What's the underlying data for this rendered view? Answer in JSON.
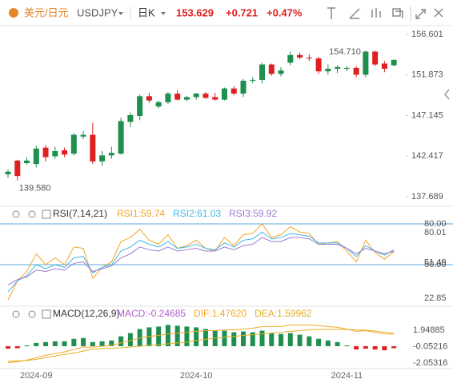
{
  "header": {
    "pair": "美元/日元",
    "symbol": "USDJPY",
    "period": "日K",
    "price": "153.629",
    "change": "+0.721",
    "change_pct": "+0.47%"
  },
  "chart_data": [
    {
      "type": "candlestick",
      "categories": [
        null,
        null,
        null,
        "2024-09",
        null,
        null,
        null,
        null,
        null,
        null,
        null,
        null,
        null,
        null,
        null,
        null,
        null,
        null,
        null,
        null,
        "2024-10",
        null,
        null,
        null,
        null,
        null,
        null,
        null,
        null,
        null,
        null,
        null,
        null,
        null,
        null,
        null,
        "2024-11",
        null,
        null,
        null,
        null,
        null
      ],
      "open": [
        140.3,
        141.9,
        141.6,
        141.5,
        143.4,
        142.4,
        143.1,
        142.7,
        144.7,
        144.9,
        141.8,
        142.5,
        142.7,
        146.4,
        147.1,
        149.4,
        148.2,
        148.7,
        149.7,
        149.0,
        149.3,
        149.7,
        149.3,
        149.0,
        150.3,
        149.7,
        151.2,
        151.3,
        153.1,
        152.0,
        153.3,
        154.2,
        153.9,
        153.8,
        152.3,
        152.6,
        152.6,
        152.7,
        151.9,
        154.6,
        153.2,
        153.0
      ],
      "high": [
        140.9,
        142.0,
        142.3,
        143.6,
        143.7,
        143.5,
        143.4,
        145.1,
        145.3,
        146.3,
        143.0,
        143.5,
        146.9,
        147.5,
        149.6,
        149.8,
        148.9,
        149.9,
        150.1,
        149.4,
        149.8,
        149.9,
        149.8,
        150.4,
        150.6,
        151.4,
        151.6,
        153.3,
        153.2,
        152.8,
        154.6,
        154.5,
        154.3,
        154.0,
        153.1,
        153.0,
        152.9,
        152.9,
        154.71,
        154.7,
        153.5,
        153.7
      ],
      "low": [
        139.9,
        139.58,
        141.4,
        141.1,
        141.8,
        142.1,
        142.3,
        142.5,
        144.4,
        141.5,
        141.3,
        142.1,
        142.6,
        145.8,
        146.6,
        148.6,
        148.0,
        148.5,
        148.9,
        148.8,
        149.0,
        149.1,
        148.9,
        148.9,
        149.5,
        149.3,
        150.9,
        150.9,
        151.8,
        151.7,
        153.0,
        153.7,
        153.5,
        152.0,
        151.9,
        152.1,
        152.3,
        151.6,
        151.6,
        152.9,
        152.2,
        152.9
      ],
      "close": [
        140.6,
        140.1,
        141.9,
        143.3,
        142.3,
        143.0,
        142.6,
        144.9,
        144.9,
        141.8,
        142.5,
        142.8,
        146.5,
        147.2,
        149.4,
        148.9,
        148.7,
        149.7,
        149.0,
        149.3,
        149.7,
        149.2,
        149.0,
        150.3,
        149.7,
        151.2,
        151.3,
        153.1,
        152.0,
        152.4,
        154.2,
        153.9,
        153.8,
        152.3,
        152.6,
        152.8,
        152.7,
        151.9,
        154.6,
        153.1,
        152.6,
        153.63
      ],
      "up_color": "#1e8f4e",
      "down_color": "#e02020",
      "high_label": "154.710",
      "low_label": "139.580",
      "ylim": [
        136.85,
        157.35
      ],
      "yticks": [
        {
          "value": 156.601,
          "label": "156.601"
        },
        {
          "value": 151.873,
          "label": "151.873"
        },
        {
          "value": 147.145,
          "label": "147.145"
        },
        {
          "value": 142.417,
          "label": "142.417"
        },
        {
          "value": 137.689,
          "label": "137.689"
        }
      ]
    },
    {
      "type": "line",
      "title": "RSI(7,14,21)",
      "series": [
        {
          "name": "RSI1:59.74",
          "color": "#f5a623",
          "values": [
            24,
            38,
            45,
            58,
            50,
            55,
            50,
            63,
            62,
            40,
            48,
            52,
            67,
            70,
            76,
            68,
            65,
            72,
            62,
            64,
            68,
            62,
            60,
            70,
            64,
            72,
            73,
            80,
            70,
            72,
            78,
            74,
            73,
            65,
            66,
            67,
            60,
            52,
            68,
            59,
            54,
            59.74
          ]
        },
        {
          "name": "RSI2:61.03",
          "color": "#3fb8e8",
          "values": [
            30,
            38,
            42,
            50,
            47,
            50,
            48,
            55,
            56,
            44,
            48,
            50,
            60,
            63,
            68,
            65,
            63,
            67,
            62,
            63,
            65,
            62,
            61,
            66,
            63,
            68,
            69,
            74,
            69,
            70,
            73,
            72,
            71,
            66,
            66,
            66,
            62,
            56,
            64,
            60,
            57,
            61.03
          ]
        },
        {
          "name": "RSI3:59.92",
          "color": "#9b7ad0",
          "values": [
            35,
            39,
            41,
            46,
            45,
            47,
            46,
            51,
            52,
            45,
            47,
            49,
            55,
            58,
            63,
            61,
            60,
            63,
            60,
            61,
            62,
            60,
            60,
            63,
            61,
            64,
            65,
            70,
            67,
            67,
            70,
            70,
            69,
            65,
            65,
            65,
            62,
            58,
            62,
            60,
            58,
            59.92
          ]
        }
      ],
      "level_color": "#5aa7e0",
      "ylim": [
        18.2,
        81.2
      ],
      "yticks": [
        {
          "value": 80,
          "label": "80.00"
        },
        {
          "value": 50,
          "label": "50.00"
        }
      ],
      "axis_labels": [
        {
          "value": 80.01,
          "label": "80.01"
        },
        {
          "value": 51.49,
          "label": "51.49"
        },
        {
          "value": 22.85,
          "label": "22.85"
        }
      ]
    },
    {
      "type": "macd",
      "title": "MACD(12,26,9)",
      "series": [
        {
          "name": "MACD:-0.24685",
          "color": "#b05fd0",
          "up_color": "#1e8f4e",
          "down_color": "#e02020",
          "values": [
            -0.3,
            -0.25,
            0.1,
            0.4,
            0.5,
            0.6,
            0.6,
            0.9,
            1.0,
            0.5,
            0.6,
            0.7,
            1.2,
            1.6,
            2.1,
            2.3,
            2.4,
            2.6,
            2.5,
            2.4,
            2.3,
            2.1,
            1.9,
            1.9,
            1.7,
            1.8,
            1.7,
            1.9,
            1.6,
            1.5,
            1.6,
            1.4,
            1.2,
            0.9,
            0.7,
            0.5,
            0.1,
            -0.4,
            -0.3,
            -0.4,
            -0.5,
            -0.24685
          ]
        },
        {
          "name": "DIF:1.47620",
          "color": "#f5a623",
          "values": [
            -2.0,
            -1.9,
            -1.7,
            -1.4,
            -1.1,
            -0.9,
            -0.7,
            -0.4,
            -0.1,
            -0.1,
            0.0,
            0.1,
            0.4,
            0.7,
            1.0,
            1.2,
            1.3,
            1.5,
            1.6,
            1.7,
            1.8,
            1.9,
            1.9,
            2.0,
            2.0,
            2.1,
            2.2,
            2.4,
            2.4,
            2.4,
            2.6,
            2.6,
            2.6,
            2.5,
            2.4,
            2.3,
            2.1,
            1.8,
            1.9,
            1.7,
            1.5,
            1.4762
          ]
        },
        {
          "name": "DEA:1.59962",
          "color": "#e0b020",
          "values": [
            -1.85,
            -1.8,
            -1.75,
            -1.6,
            -1.4,
            -1.2,
            -1.0,
            -0.85,
            -0.6,
            -0.35,
            -0.3,
            -0.25,
            -0.2,
            -0.1,
            0.0,
            0.1,
            0.2,
            0.3,
            0.4,
            0.5,
            0.7,
            0.85,
            1.0,
            1.1,
            1.2,
            1.3,
            1.4,
            1.5,
            1.6,
            1.7,
            1.8,
            1.9,
            2.0,
            2.05,
            2.05,
            2.05,
            2.05,
            2.0,
            1.95,
            1.85,
            1.7,
            1.59962
          ]
        }
      ],
      "ylim": [
        -2.64,
        3.22
      ],
      "yticks": [
        1.94885,
        -0.05216,
        -2.05316
      ]
    }
  ]
}
